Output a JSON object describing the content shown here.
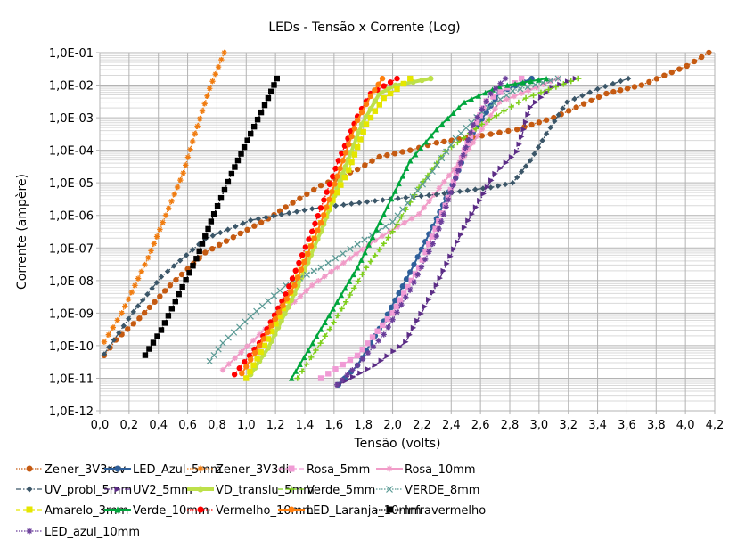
{
  "chart_data": {
    "type": "line",
    "title": "LEDs - Tensão x Corrente (Log)",
    "xlabel": "Tensão (volts)",
    "ylabel": "Corrente (ampère)",
    "xlim": [
      0,
      4.2
    ],
    "ylim": [
      1e-12,
      0.1
    ],
    "yscale": "log",
    "grid": true,
    "legend": "bottom",
    "xticks": [
      "0,0",
      "0,2",
      "0,4",
      "0,6",
      "0,8",
      "1,0",
      "1,2",
      "1,4",
      "1,6",
      "1,8",
      "2,0",
      "2,2",
      "2,4",
      "2,6",
      "2,8",
      "3,0",
      "3,2",
      "3,4",
      "3,6",
      "3,8",
      "4,0",
      "4,2"
    ],
    "yticks": [
      "1,0E-01",
      "1,0E-02",
      "1,0E-03",
      "1,0E-04",
      "1,0E-05",
      "1,0E-06",
      "1,0E-07",
      "1,0E-08",
      "1,0E-09",
      "1,0E-10",
      "1,0E-11",
      "1,0E-12"
    ],
    "series": [
      {
        "name": "Zener_3V3rev",
        "color": "#c55a11",
        "line": "dotted",
        "marker": "circle",
        "points": [
          [
            0.03,
            5e-11
          ],
          [
            0.11,
            1.5e-10
          ],
          [
            0.27,
            6.9e-10
          ],
          [
            0.48,
            7.1e-09
          ],
          [
            0.72,
            7.2e-08
          ],
          [
            0.96,
            2.8e-07
          ],
          [
            1.15,
            7.9e-07
          ],
          [
            1.27,
            1.8e-06
          ],
          [
            1.51,
            8.3e-06
          ],
          [
            1.76,
            2.6e-05
          ],
          [
            1.91,
            6.3e-05
          ],
          [
            2.12,
            0.0001
          ],
          [
            2.3,
            0.00017
          ],
          [
            2.61,
            0.00028
          ],
          [
            2.85,
            0.00044
          ],
          [
            3.1,
            0.001
          ],
          [
            3.46,
            0.0055
          ],
          [
            3.7,
            0.01
          ],
          [
            4.01,
            0.039
          ],
          [
            4.16,
            0.1
          ]
        ]
      },
      {
        "name": "LED_Azul_5mm",
        "color": "#2e5f9a",
        "line": "solid",
        "marker": "circle",
        "points": [
          [
            1.63,
            6.3e-12
          ],
          [
            1.76,
            2.5e-11
          ],
          [
            1.94,
            5.6e-10
          ],
          [
            2.12,
            1.8e-08
          ],
          [
            2.3,
            7.9e-07
          ],
          [
            2.43,
            1.4e-05
          ],
          [
            2.55,
            0.00036
          ],
          [
            2.73,
            0.0059
          ],
          [
            2.95,
            0.016
          ]
        ]
      },
      {
        "name": "Zener_3V3dir",
        "color": "#f07c10",
        "line": "dotted",
        "marker": "star",
        "points": [
          [
            0.03,
            1.3e-10
          ],
          [
            0.15,
            1e-09
          ],
          [
            0.33,
            5e-08
          ],
          [
            0.45,
            1e-06
          ],
          [
            0.57,
            2e-05
          ],
          [
            0.65,
            0.00032
          ],
          [
            0.75,
            0.0079
          ],
          [
            0.85,
            0.1
          ]
        ]
      },
      {
        "name": "Rosa_5mm",
        "color": "#f09bd5",
        "line": "dashed",
        "marker": "square",
        "points": [
          [
            1.51,
            1e-11
          ],
          [
            1.76,
            5e-11
          ],
          [
            2.0,
            1e-09
          ],
          [
            2.18,
            2.5e-08
          ],
          [
            2.36,
            2e-06
          ],
          [
            2.49,
            0.0001
          ],
          [
            2.64,
            0.0032
          ],
          [
            2.88,
            0.016
          ]
        ]
      },
      {
        "name": "Rosa_10mm",
        "color": "#f19cc8",
        "line": "solid",
        "marker": "star",
        "points": [
          [
            0.84,
            1.8e-11
          ],
          [
            1.09,
            2.2e-10
          ],
          [
            1.45,
            7.1e-09
          ],
          [
            1.88,
            1.7e-07
          ],
          [
            2.18,
            1.1e-06
          ],
          [
            2.49,
            6.6e-05
          ],
          [
            2.73,
            0.003
          ],
          [
            3.13,
            0.016
          ]
        ]
      },
      {
        "name": "UV_probl_5mm",
        "color": "#3b5668",
        "line": "dashdot",
        "marker": "diamond",
        "points": [
          [
            0.03,
            5.5e-11
          ],
          [
            0.23,
            1.1e-09
          ],
          [
            0.42,
            1.3e-08
          ],
          [
            0.72,
            1.9e-07
          ],
          [
            1.03,
            7.1e-07
          ],
          [
            1.45,
            1.6e-06
          ],
          [
            1.88,
            2.8e-06
          ],
          [
            2.3,
            4.4e-06
          ],
          [
            2.67,
            7.2e-06
          ],
          [
            2.82,
            1e-05
          ],
          [
            2.94,
            4.8e-05
          ],
          [
            3.05,
            0.00032
          ],
          [
            3.19,
            0.003
          ],
          [
            3.4,
            0.0076
          ],
          [
            3.61,
            0.016
          ]
        ]
      },
      {
        "name": "UV2_5mm",
        "color": "#5b2c86",
        "line": "dashdot",
        "marker": "triangle-right",
        "points": [
          [
            1.63,
            6.3e-12
          ],
          [
            1.88,
            2.5e-11
          ],
          [
            2.09,
            1.3e-10
          ],
          [
            2.3,
            7.1e-09
          ],
          [
            2.49,
            4.3e-07
          ],
          [
            2.7,
            1.9e-05
          ],
          [
            2.85,
            9.1e-05
          ],
          [
            2.94,
            0.0021
          ],
          [
            3.09,
            0.0085
          ],
          [
            3.25,
            0.016
          ]
        ]
      },
      {
        "name": "VD_translu_5mm",
        "color": "#bde04a",
        "line": "thick",
        "marker": "circle",
        "points": [
          [
            1.03,
            1.3e-11
          ],
          [
            1.15,
            8.5e-11
          ],
          [
            1.33,
            4e-09
          ],
          [
            1.51,
            3.2e-07
          ],
          [
            1.66,
            1.9e-05
          ],
          [
            1.79,
            0.00063
          ],
          [
            1.91,
            0.0055
          ],
          [
            2.02,
            0.0098
          ],
          [
            2.26,
            0.016
          ]
        ]
      },
      {
        "name": "Verde_5mm",
        "color": "#7ecf1a",
        "line": "dashed",
        "marker": "plus",
        "points": [
          [
            1.35,
            1e-11
          ],
          [
            1.57,
            3.2e-10
          ],
          [
            1.82,
            2.5e-08
          ],
          [
            2.0,
            3.2e-07
          ],
          [
            2.18,
            7.2e-06
          ],
          [
            2.36,
            9.1e-05
          ],
          [
            2.61,
            0.00063
          ],
          [
            2.91,
            0.004
          ],
          [
            3.27,
            0.016
          ]
        ]
      },
      {
        "name": "VERDE_8mm",
        "color": "#5b9a95",
        "line": "dotted",
        "marker": "x",
        "points": [
          [
            0.75,
            3.3e-11
          ],
          [
            0.84,
            1.2e-10
          ],
          [
            1.03,
            7.9e-10
          ],
          [
            1.27,
            7.1e-09
          ],
          [
            1.51,
            2.5e-08
          ],
          [
            1.76,
            1.3e-07
          ],
          [
            2.0,
            6.3e-07
          ],
          [
            2.24,
            1.4e-05
          ],
          [
            2.43,
            0.00023
          ],
          [
            2.61,
            0.0015
          ],
          [
            2.82,
            0.0066
          ],
          [
            3.13,
            0.016
          ]
        ]
      },
      {
        "name": "Amarelo_3mm",
        "color": "#e5e600",
        "line": "dashed",
        "marker": "square",
        "points": [
          [
            1.0,
            1e-11
          ],
          [
            1.15,
            1.6e-10
          ],
          [
            1.33,
            7.1e-09
          ],
          [
            1.51,
            5.9e-07
          ],
          [
            1.7,
            2.5e-05
          ],
          [
            1.82,
            0.00063
          ],
          [
            1.94,
            0.004
          ],
          [
            2.03,
            0.0076
          ],
          [
            2.12,
            0.016
          ]
        ]
      },
      {
        "name": "Verde_10mm",
        "color": "#00a63c",
        "line": "solid",
        "marker": "triangle",
        "points": [
          [
            1.31,
            1e-11
          ],
          [
            1.51,
            3.2e-10
          ],
          [
            1.76,
            2.5e-08
          ],
          [
            1.94,
            1.1e-06
          ],
          [
            2.12,
            4.8e-05
          ],
          [
            2.3,
            0.00044
          ],
          [
            2.49,
            0.003
          ],
          [
            2.73,
            0.0091
          ],
          [
            3.05,
            0.016
          ]
        ]
      },
      {
        "name": "Vermelho_10mm",
        "color": "#ff0000",
        "line": "dotted",
        "marker": "circle",
        "points": [
          [
            0.92,
            1.3e-11
          ],
          [
            1.09,
            1.2e-10
          ],
          [
            1.27,
            3.8e-09
          ],
          [
            1.45,
            3.2e-07
          ],
          [
            1.63,
            4.8e-05
          ],
          [
            1.76,
            0.0011
          ],
          [
            1.85,
            0.0055
          ],
          [
            2.03,
            0.016
          ]
        ]
      },
      {
        "name": "LED_Laranja_10mm",
        "color": "#ff7f0e",
        "line": "solid",
        "marker": "circle",
        "points": [
          [
            0.97,
            1.4e-11
          ],
          [
            1.12,
            1.6e-10
          ],
          [
            1.33,
            7.1e-09
          ],
          [
            1.51,
            5.9e-07
          ],
          [
            1.66,
            4.8e-05
          ],
          [
            1.76,
            0.00083
          ],
          [
            1.85,
            0.0046
          ],
          [
            1.93,
            0.016
          ]
        ]
      },
      {
        "name": "Infravermelho",
        "color": "#000000",
        "line": "dotted",
        "marker": "square",
        "points": [
          [
            0.31,
            5.1e-11
          ],
          [
            0.42,
            3e-10
          ],
          [
            0.54,
            3.8e-09
          ],
          [
            0.66,
            4.7e-08
          ],
          [
            0.78,
            1.1e-06
          ],
          [
            0.9,
            1.9e-05
          ],
          [
            1.03,
            0.00032
          ],
          [
            1.15,
            0.004
          ],
          [
            1.21,
            0.016
          ]
        ]
      },
      {
        "name": "LED_azul_10mm",
        "color": "#6a3d9a",
        "line": "dotted",
        "marker": "star",
        "points": [
          [
            1.62,
            6.3e-12
          ],
          [
            1.76,
            2.5e-11
          ],
          [
            1.94,
            2.2e-10
          ],
          [
            2.12,
            5.1e-09
          ],
          [
            2.3,
            2.3e-07
          ],
          [
            2.43,
            1.4e-05
          ],
          [
            2.55,
            0.0006
          ],
          [
            2.67,
            0.0055
          ],
          [
            2.77,
            0.016
          ]
        ]
      }
    ]
  }
}
